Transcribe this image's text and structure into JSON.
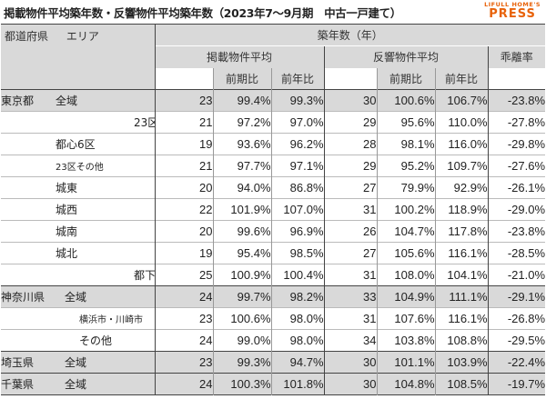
{
  "header": {
    "title": "掲載物件平均築年数・反響物件平均築年数（2023年7〜9月期　中古一戸建て）",
    "logo_top": "LIFULL HOME'S",
    "logo_main": "PRESS"
  },
  "table": {
    "col_pref": "都道府県",
    "col_area": "エリア",
    "col_age": "築年数（年）",
    "group_listed": "掲載物件平均",
    "group_response": "反響物件平均",
    "col_gap": "乖離率",
    "col_qoq": "前期比",
    "col_yoy": "前年比",
    "rows": [
      {
        "pref": "東京都",
        "area": "全域",
        "l": "23",
        "lq": "99.4%",
        "ly": "99.3%",
        "r": "30",
        "rq": "100.6%",
        "ry": "106.7%",
        "g": "-23.8%"
      },
      {
        "pref": "",
        "area": "23区",
        "l": "21",
        "lq": "97.2%",
        "ly": "97.0%",
        "r": "29",
        "rq": "95.6%",
        "ry": "110.0%",
        "g": "-27.8%"
      },
      {
        "pref": "",
        "area": "都心6区",
        "l": "19",
        "lq": "93.6%",
        "ly": "96.2%",
        "r": "28",
        "rq": "98.1%",
        "ry": "116.0%",
        "g": "-29.8%"
      },
      {
        "pref": "",
        "area": "23区その他",
        "l": "21",
        "lq": "97.7%",
        "ly": "97.1%",
        "r": "29",
        "rq": "95.2%",
        "ry": "109.7%",
        "g": "-27.6%"
      },
      {
        "pref": "",
        "area": "城東",
        "l": "20",
        "lq": "94.0%",
        "ly": "86.8%",
        "r": "27",
        "rq": "79.9%",
        "ry": "92.9%",
        "g": "-26.1%"
      },
      {
        "pref": "",
        "area": "城西",
        "l": "22",
        "lq": "101.9%",
        "ly": "107.0%",
        "r": "31",
        "rq": "100.2%",
        "ry": "118.9%",
        "g": "-29.0%"
      },
      {
        "pref": "",
        "area": "城南",
        "l": "20",
        "lq": "99.6%",
        "ly": "96.9%",
        "r": "26",
        "rq": "104.7%",
        "ry": "117.8%",
        "g": "-23.8%"
      },
      {
        "pref": "",
        "area": "城北",
        "l": "19",
        "lq": "95.4%",
        "ly": "98.5%",
        "r": "27",
        "rq": "105.6%",
        "ry": "116.1%",
        "g": "-28.5%"
      },
      {
        "pref": "",
        "area": "都下",
        "l": "25",
        "lq": "100.9%",
        "ly": "100.4%",
        "r": "31",
        "rq": "108.0%",
        "ry": "104.1%",
        "g": "-21.0%"
      },
      {
        "pref": "神奈川県",
        "area": "全域",
        "l": "24",
        "lq": "99.7%",
        "ly": "98.2%",
        "r": "33",
        "rq": "104.9%",
        "ry": "111.1%",
        "g": "-29.1%"
      },
      {
        "pref": "",
        "area": "横浜市・川崎市",
        "l": "23",
        "lq": "100.6%",
        "ly": "98.0%",
        "r": "31",
        "rq": "107.6%",
        "ry": "116.1%",
        "g": "-26.8%"
      },
      {
        "pref": "",
        "area": "その他",
        "l": "24",
        "lq": "99.0%",
        "ly": "98.0%",
        "r": "34",
        "rq": "103.8%",
        "ry": "108.8%",
        "g": "-29.5%"
      },
      {
        "pref": "埼玉県",
        "area": "全域",
        "l": "23",
        "lq": "99.3%",
        "ly": "94.7%",
        "r": "30",
        "rq": "101.1%",
        "ry": "103.9%",
        "g": "-22.4%"
      },
      {
        "pref": "千葉県",
        "area": "全域",
        "l": "24",
        "lq": "100.3%",
        "ly": "101.8%",
        "r": "30",
        "rq": "104.8%",
        "ry": "108.5%",
        "g": "-19.7%"
      }
    ]
  }
}
